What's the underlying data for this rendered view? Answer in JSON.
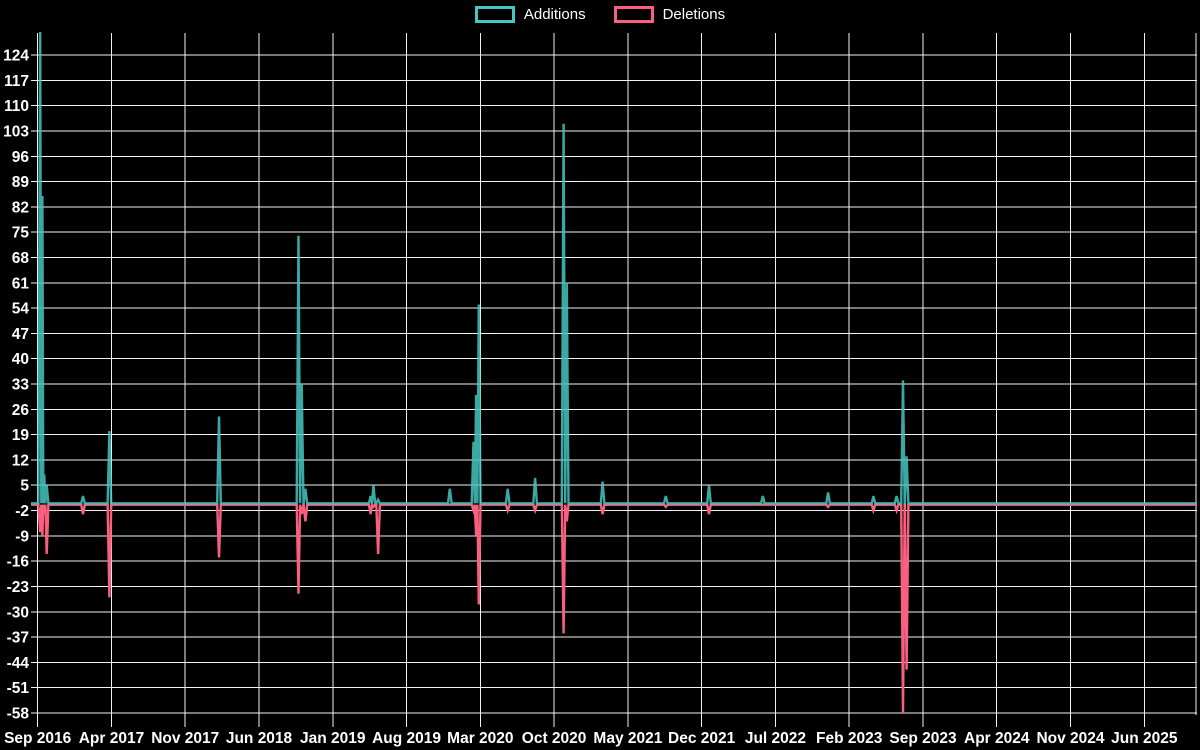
{
  "chart_data": {
    "type": "line",
    "title": "",
    "legend": [
      {
        "label": "Additions",
        "color": "#45c6c1"
      },
      {
        "label": "Deletions",
        "color": "#f9607f"
      }
    ],
    "legend_position": "top-center",
    "grid": true,
    "background_color": "#000000",
    "grid_color": "#f2f2f2",
    "text_color": "#ffffff",
    "baseline_blend_note": "flat baseline shows additions line drawn semi-transparent over deletions line at ~0, giving a muted teal band",
    "x_axis": {
      "epoch_label": "Sep 2016",
      "tick_step_months": 7,
      "tick_labels": [
        "Sep 2016",
        "Apr 2017",
        "Nov 2017",
        "Jun 2018",
        "Jan 2019",
        "Aug 2019",
        "Mar 2020",
        "Oct 2020",
        "May 2021",
        "Dec 2021",
        "Jul 2022",
        "Feb 2023",
        "Sep 2023",
        "Apr 2024",
        "Nov 2024",
        "Jun 2025"
      ]
    },
    "y_axis": {
      "min": -58,
      "max": 124,
      "step": 7,
      "tick_labels": [
        "124",
        "117",
        "110",
        "103",
        "96",
        "89",
        "82",
        "75",
        "68",
        "61",
        "54",
        "47",
        "40",
        "33",
        "26",
        "19",
        "12",
        "5",
        "-2",
        "-9",
        "-16",
        "-23",
        "-30",
        "-37",
        "-44",
        "-51",
        "-58"
      ]
    },
    "series_note": "spikes listed as months after Sep 2016 (t); add = additions peak, del = deletions trough; first additions spike exceeds chart top and is clipped (~130+); flat elsewhere at 0",
    "spikes": [
      {
        "t": 0.24,
        "add": 131,
        "del": -8
      },
      {
        "t": 0.45,
        "add": 85,
        "del": -9
      },
      {
        "t": 0.62,
        "add": 8,
        "del": -3
      },
      {
        "t": 0.85,
        "add": 5,
        "del": -14
      },
      {
        "t": 4.3,
        "add": 2,
        "del": -3
      },
      {
        "t": 6.8,
        "add": 20,
        "del": -26
      },
      {
        "t": 17.2,
        "add": 24,
        "del": -15
      },
      {
        "t": 24.75,
        "add": 74,
        "del": -25
      },
      {
        "t": 25.05,
        "add": 33,
        "del": -3
      },
      {
        "t": 25.4,
        "add": 4,
        "del": -5
      },
      {
        "t": 31.6,
        "add": 2,
        "del": -3
      },
      {
        "t": 31.85,
        "add": 5,
        "del": -1
      },
      {
        "t": 32.3,
        "add": 1,
        "del": -14
      },
      {
        "t": 39.1,
        "add": 4,
        "del": 0
      },
      {
        "t": 41.35,
        "add": 17,
        "del": -2
      },
      {
        "t": 41.6,
        "add": 30,
        "del": -9
      },
      {
        "t": 41.85,
        "add": 55,
        "del": -28
      },
      {
        "t": 44.6,
        "add": 4,
        "del": -2
      },
      {
        "t": 47.2,
        "add": 7,
        "del": -2
      },
      {
        "t": 49.9,
        "add": 105,
        "del": -36
      },
      {
        "t": 50.2,
        "add": 61,
        "del": -5
      },
      {
        "t": 53.6,
        "add": 6,
        "del": -3
      },
      {
        "t": 59.6,
        "add": 2,
        "del": -1
      },
      {
        "t": 63.7,
        "add": 5,
        "del": -3
      },
      {
        "t": 68.8,
        "add": 2,
        "del": 0
      },
      {
        "t": 75.0,
        "add": 3,
        "del": -1
      },
      {
        "t": 79.3,
        "add": 2,
        "del": -2
      },
      {
        "t": 81.5,
        "add": 2,
        "del": -2
      },
      {
        "t": 82.1,
        "add": 34,
        "del": -58
      },
      {
        "t": 82.45,
        "add": 13,
        "del": -46
      }
    ]
  }
}
